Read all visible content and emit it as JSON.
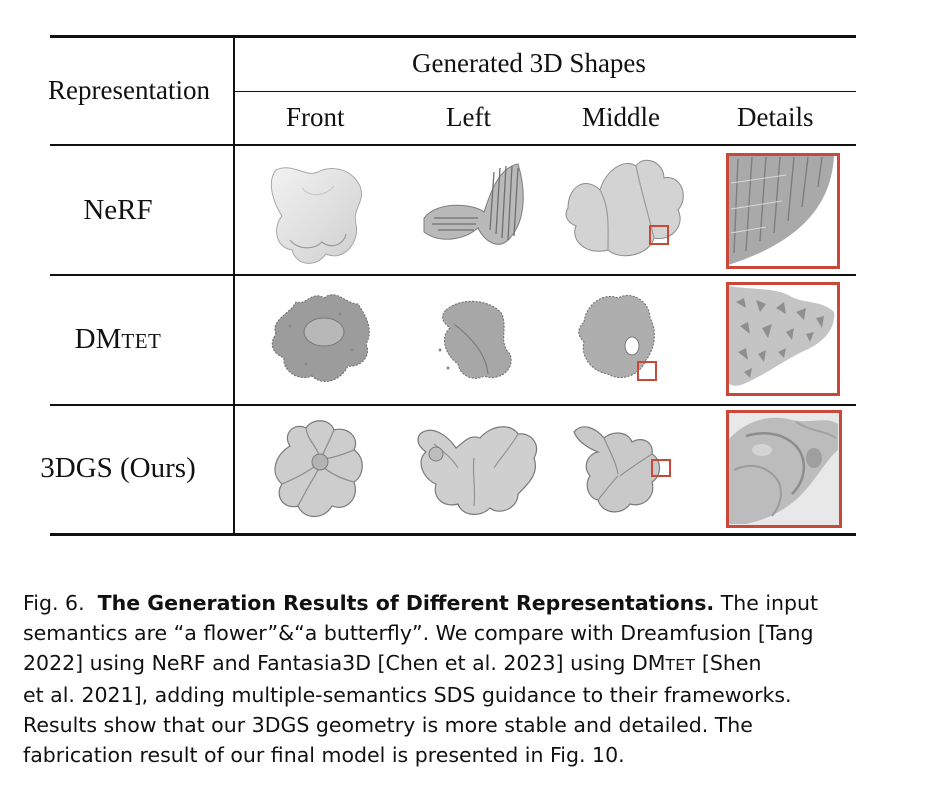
{
  "table": {
    "row_header": "Representation",
    "group_header": "Generated 3D Shapes",
    "columns": [
      "Front",
      "Left",
      "Middle",
      "Details"
    ],
    "rows": [
      {
        "label": "NeRF",
        "label_suffix": ""
      },
      {
        "label": "DM",
        "label_suffix": "TET"
      },
      {
        "label": "3DGS (Ours)",
        "label_suffix": ""
      }
    ]
  },
  "caption": {
    "fig_label": "Fig. 6.",
    "title": "The Generation Results of Different Representations.",
    "l1_rest": " The input",
    "l2": "semantics are “a flower”&“a butterfly”. We compare with Dreamfusion [Tang",
    "l3a": "2022] using NeRF and Fantasia3D [Chen et al. 2023] using DM",
    "l3b": "Tet",
    "l3c": " [Shen",
    "l4": "et al. 2021], adding multiple-semantics SDS guidance to their frameworks.",
    "l5": "Results show that our 3DGS geometry is more stable and detailed. The",
    "l6": "fabrication result of our final model is presented in Fig. 10."
  },
  "colors": {
    "highlight_box": "#c8493a",
    "rule": "#111111",
    "mesh_light": "#e6e6e6",
    "mesh_mid": "#bdbdbd",
    "mesh_dark": "#8e8e8e"
  }
}
